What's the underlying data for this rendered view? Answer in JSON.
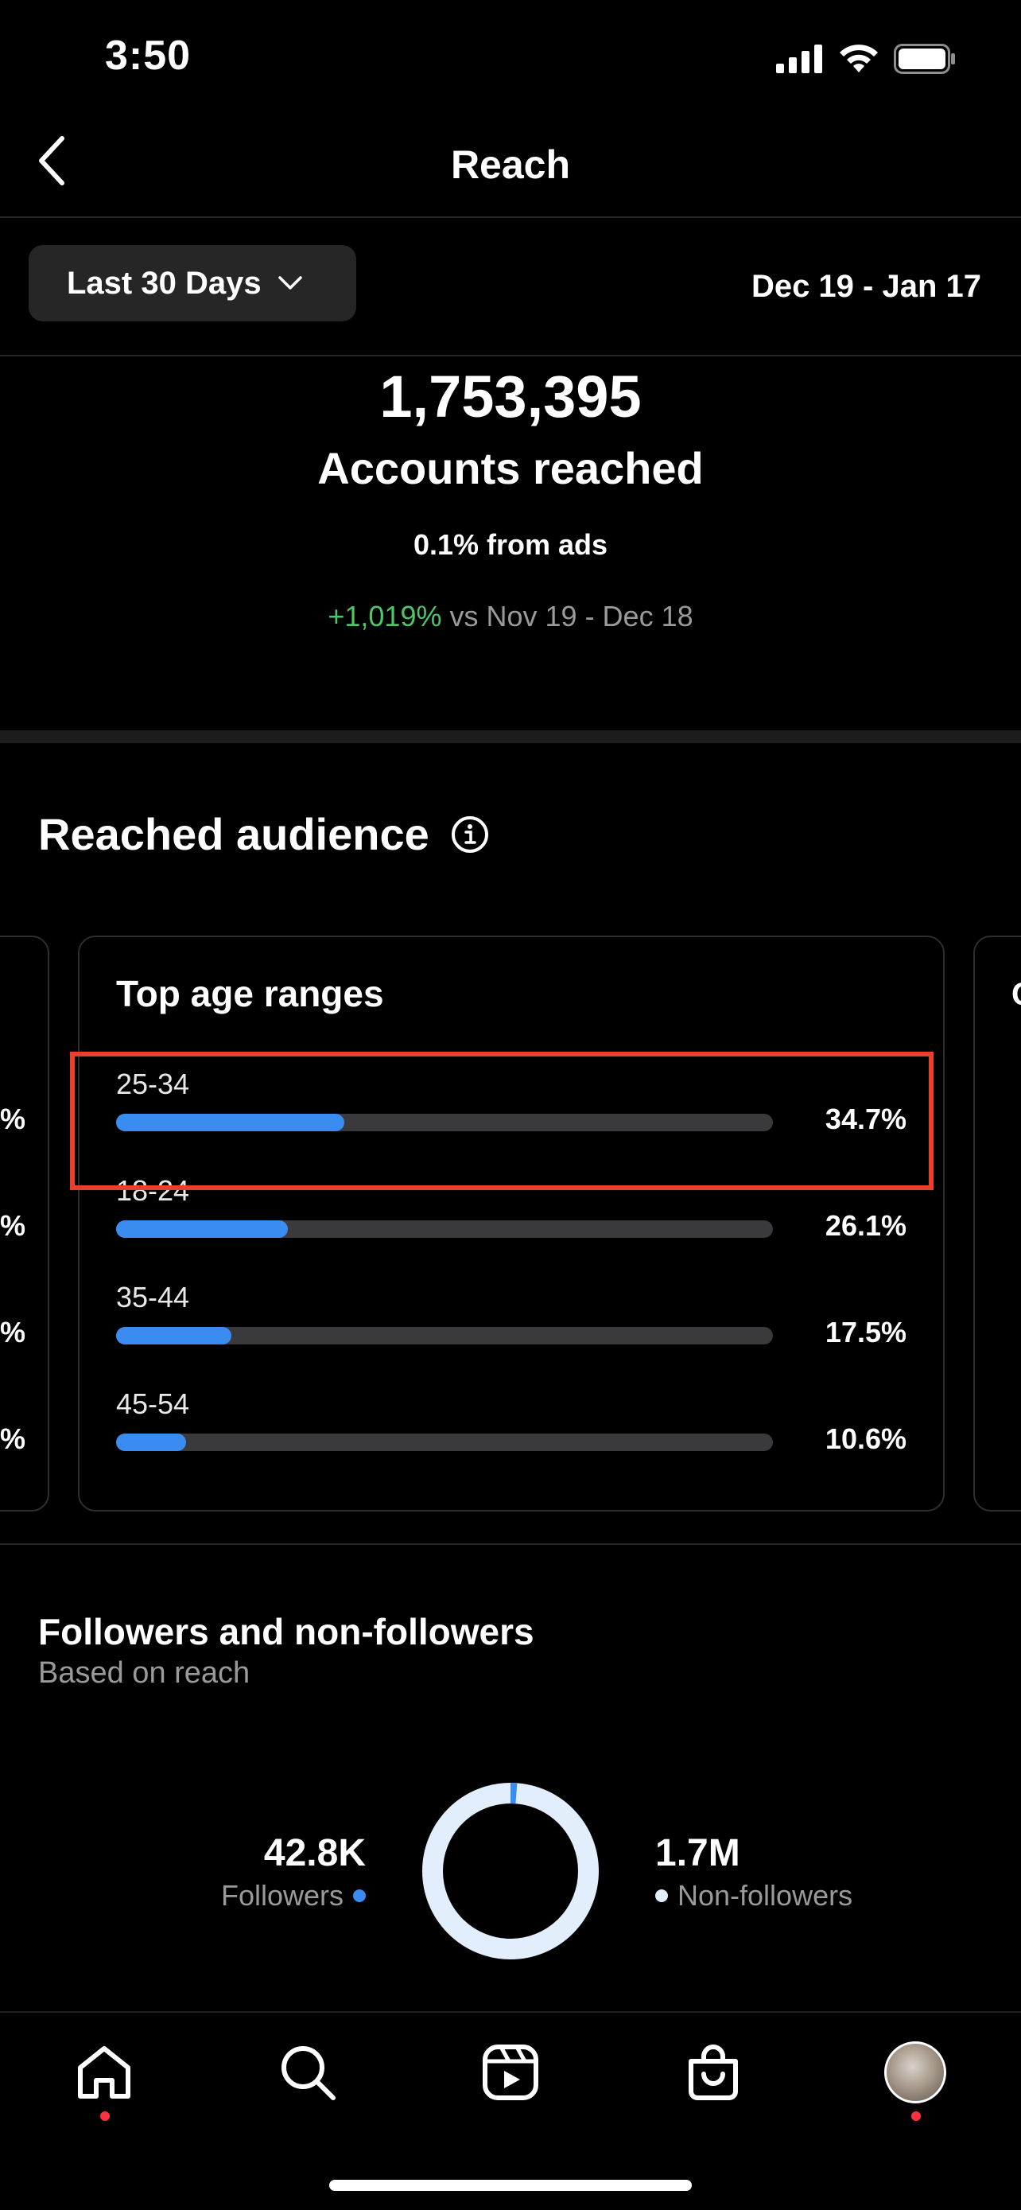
{
  "status_bar": {
    "time": "3:50"
  },
  "nav": {
    "title": "Reach"
  },
  "filter": {
    "range_label": "Last 30 Days",
    "date_range": "Dec 19 - Jan 17"
  },
  "summary": {
    "accounts_reached": "1,753,395",
    "label": "Accounts reached",
    "from_ads": "0.1% from ads",
    "change": "+1,019%",
    "compare_text": "vs Nov 19 - Dec 18"
  },
  "reached_audience": {
    "title": "Reached audience",
    "card_title": "Top age ranges",
    "rows": [
      {
        "label": "25-34",
        "value": "34.7%",
        "percent": 34.7
      },
      {
        "label": "18-24",
        "value": "26.1%",
        "percent": 26.1
      },
      {
        "label": "35-44",
        "value": "17.5%",
        "percent": 17.5
      },
      {
        "label": "45-54",
        "value": "10.6%",
        "percent": 10.6
      }
    ],
    "left_card_peek": [
      "%",
      "%",
      "%",
      "%"
    ],
    "right_card_peek": "C"
  },
  "followers": {
    "title": "Followers and non-followers",
    "subtitle": "Based on reach",
    "followers_value": "42.8K",
    "followers_label": "Followers",
    "nonfollowers_value": "1.7M",
    "nonfollowers_label": "Non-followers",
    "followers_share": 0.024
  },
  "colors": {
    "accent_blue": "#3a8cf0",
    "positive_green": "#4ec46b",
    "highlight_red": "#e8402a",
    "nonfollower_ring": "#e3eefc"
  },
  "tab_bar": [
    "home",
    "search",
    "reels",
    "shop",
    "profile"
  ]
}
